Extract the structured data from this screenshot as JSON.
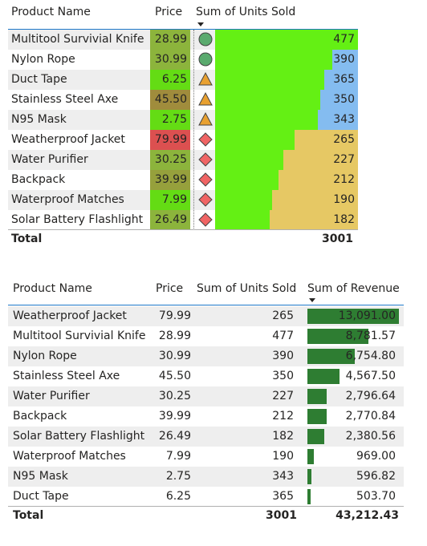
{
  "table1": {
    "headers": {
      "product": "Product Name",
      "price": "Price",
      "units": "Sum of Units Sold"
    },
    "sorted_by": "units",
    "rows": [
      {
        "product": "Multitool Survivial Knife",
        "price": "28.99",
        "price_color": "#8cb43c",
        "icon": "circle",
        "units": 477,
        "units_label": "477",
        "units_bg": "#84bcf0"
      },
      {
        "product": "Nylon Rope",
        "price": "30.99",
        "price_color": "#8cb43c",
        "icon": "circle",
        "units": 390,
        "units_label": "390",
        "units_bg": "#84bcf0"
      },
      {
        "product": "Duct Tape",
        "price": "6.25",
        "price_color": "#64dc14",
        "icon": "triangle",
        "units": 365,
        "units_label": "365",
        "units_bg": "#84bcf0"
      },
      {
        "product": "Stainless Steel Axe",
        "price": "45.50",
        "price_color": "#a08c3c",
        "icon": "triangle",
        "units": 350,
        "units_label": "350",
        "units_bg": "#84bcf0"
      },
      {
        "product": "N95 Mask",
        "price": "2.75",
        "price_color": "#64dc14",
        "icon": "triangle",
        "units": 343,
        "units_label": "343",
        "units_bg": "#84bcf0"
      },
      {
        "product": "Weatherproof Jacket",
        "price": "79.99",
        "price_color": "#dc5050",
        "icon": "diamond",
        "units": 265,
        "units_label": "265",
        "units_bg": "#e6c864"
      },
      {
        "product": "Water Purifier",
        "price": "30.25",
        "price_color": "#8cb43c",
        "icon": "diamond",
        "units": 227,
        "units_label": "227",
        "units_bg": "#e6c864"
      },
      {
        "product": "Backpack",
        "price": "39.99",
        "price_color": "#96a03c",
        "icon": "diamond",
        "units": 212,
        "units_label": "212",
        "units_bg": "#e6c864"
      },
      {
        "product": "Waterproof Matches",
        "price": "7.99",
        "price_color": "#64dc14",
        "icon": "diamond",
        "units": 190,
        "units_label": "190",
        "units_bg": "#e6c864"
      },
      {
        "product": "Solar Battery Flashlight",
        "price": "26.49",
        "price_color": "#8cb43c",
        "icon": "diamond",
        "units": 182,
        "units_label": "182",
        "units_bg": "#e6c864"
      }
    ],
    "total_label": "Total",
    "total_units": "3001"
  },
  "table2": {
    "headers": {
      "product": "Product Name",
      "price": "Price",
      "units": "Sum of Units Sold",
      "revenue": "Sum of Revenue"
    },
    "sorted_by": "revenue",
    "rows": [
      {
        "product": "Weatherproof Jacket",
        "price": "79.99",
        "units": "265",
        "revenue": 13091.0,
        "revenue_label": "13,091.00"
      },
      {
        "product": "Multitool Survivial Knife",
        "price": "28.99",
        "units": "477",
        "revenue": 8781.57,
        "revenue_label": "8,781.57"
      },
      {
        "product": "Nylon Rope",
        "price": "30.99",
        "units": "390",
        "revenue": 6754.8,
        "revenue_label": "6,754.80"
      },
      {
        "product": "Stainless Steel Axe",
        "price": "45.50",
        "units": "350",
        "revenue": 4567.5,
        "revenue_label": "4,567.50"
      },
      {
        "product": "Water Purifier",
        "price": "30.25",
        "units": "227",
        "revenue": 2796.64,
        "revenue_label": "2,796.64"
      },
      {
        "product": "Backpack",
        "price": "39.99",
        "units": "212",
        "revenue": 2770.84,
        "revenue_label": "2,770.84"
      },
      {
        "product": "Solar Battery Flashlight",
        "price": "26.49",
        "units": "182",
        "revenue": 2380.56,
        "revenue_label": "2,380.56"
      },
      {
        "product": "Waterproof Matches",
        "price": "7.99",
        "units": "190",
        "revenue": 969.0,
        "revenue_label": "969.00"
      },
      {
        "product": "N95 Mask",
        "price": "2.75",
        "units": "343",
        "revenue": 596.82,
        "revenue_label": "596.82"
      },
      {
        "product": "Duct Tape",
        "price": "6.25",
        "units": "365",
        "revenue": 503.7,
        "revenue_label": "503.70"
      }
    ],
    "total_label": "Total",
    "total_units": "3001",
    "total_revenue": "43,212.43"
  },
  "colors": {
    "units_bar": "#64f014",
    "revenue_bar": "#2e7d32",
    "icon_circle": "#5aaa6e",
    "icon_triangle": "#e8a030",
    "icon_diamond": "#f06464",
    "header_rule": "#1e78c8",
    "row_stripe": "#eeeeee"
  }
}
